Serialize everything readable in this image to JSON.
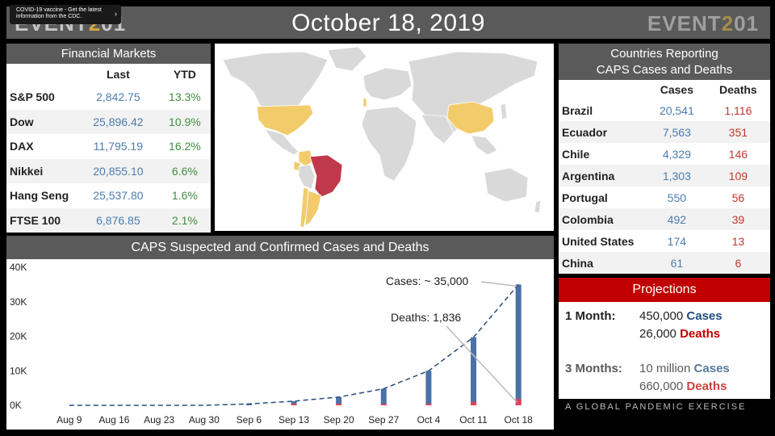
{
  "header": {
    "title": "October 18, 2019",
    "logo_prefix": "EVENT",
    "logo_zero": "2",
    "logo_suffix": "01"
  },
  "banner": {
    "text": "COVID-19 vaccine - Get the latest information from the CDC.",
    "chevron": "›"
  },
  "financial": {
    "title": "Financial Markets",
    "col_last": "Last",
    "col_ytd": "YTD",
    "rows": [
      {
        "name": "S&P 500",
        "last": "2,842.75",
        "ytd": "13.3%"
      },
      {
        "name": "Dow",
        "last": "25,896.42",
        "ytd": "10.9%"
      },
      {
        "name": "DAX",
        "last": "11,795.19",
        "ytd": "16.2%"
      },
      {
        "name": "Nikkei",
        "last": "20,855.10",
        "ytd": "6.6%"
      },
      {
        "name": "Hang Seng",
        "last": "25,537.80",
        "ytd": "1.6%"
      },
      {
        "name": "FTSE 100",
        "last": "6,876.85",
        "ytd": "2.1%"
      }
    ]
  },
  "countries": {
    "title_line1": "Countries Reporting",
    "title_line2": "CAPS Cases and Deaths",
    "col_cases": "Cases",
    "col_deaths": "Deaths",
    "rows": [
      {
        "name": "Brazil",
        "cases": "20,541",
        "deaths": "1,116"
      },
      {
        "name": "Ecuador",
        "cases": "7,563",
        "deaths": "351"
      },
      {
        "name": "Chile",
        "cases": "4,329",
        "deaths": "146"
      },
      {
        "name": "Argentina",
        "cases": "1,303",
        "deaths": "109"
      },
      {
        "name": "Portugal",
        "cases": "550",
        "deaths": "56"
      },
      {
        "name": "Colombia",
        "cases": "492",
        "deaths": "39"
      },
      {
        "name": "United States",
        "cases": "174",
        "deaths": "13"
      },
      {
        "name": "China",
        "cases": "61",
        "deaths": "6"
      }
    ],
    "map_colors": {
      "land": "#d9d9d9",
      "reporting": "#f2cc6b",
      "highest": "#c0394b"
    }
  },
  "projections": {
    "title": "Projections",
    "one_month_label": "1 Month:",
    "one_month_cases": "450,000",
    "one_month_deaths": "26,000",
    "three_months_label": "3 Months:",
    "three_months_cases": "10 million",
    "three_months_deaths": "660,000",
    "cases_word": "Cases",
    "deaths_word": "Deaths"
  },
  "tagline": "A GLOBAL PANDEMIC EXERCISE",
  "chart_data": {
    "type": "bar",
    "title": "CAPS Suspected and Confirmed Cases and Deaths",
    "categories": [
      "Aug 9",
      "Aug 16",
      "Aug 23",
      "Aug 30",
      "Sep 6",
      "Sep 13",
      "Sep 20",
      "Sep 27",
      "Oct 4",
      "Oct 11",
      "Oct 18"
    ],
    "series": [
      {
        "name": "Cases",
        "color": "#4a72a8",
        "values": [
          0,
          0,
          0,
          0,
          400,
          1200,
          2400,
          4800,
          10000,
          19700,
          35000
        ]
      },
      {
        "name": "Deaths",
        "color": "#e0445a",
        "values": [
          0,
          0,
          0,
          0,
          0,
          60,
          120,
          240,
          500,
          1000,
          1836
        ]
      }
    ],
    "trend": {
      "name": "Cases trend",
      "style": "dashed",
      "color": "#2a4d7a"
    },
    "yticks": [
      0,
      10000,
      20000,
      30000,
      40000
    ],
    "ytick_labels": [
      "0K",
      "10K",
      "20K",
      "30K",
      "40K"
    ],
    "ylim": [
      0,
      40000
    ],
    "annotations": [
      {
        "text": "Cases: ~ 35,000",
        "target_index": 10,
        "target_series": "Cases"
      },
      {
        "text": "Deaths: 1,836",
        "target_index": 10,
        "target_series": "Deaths"
      }
    ]
  }
}
